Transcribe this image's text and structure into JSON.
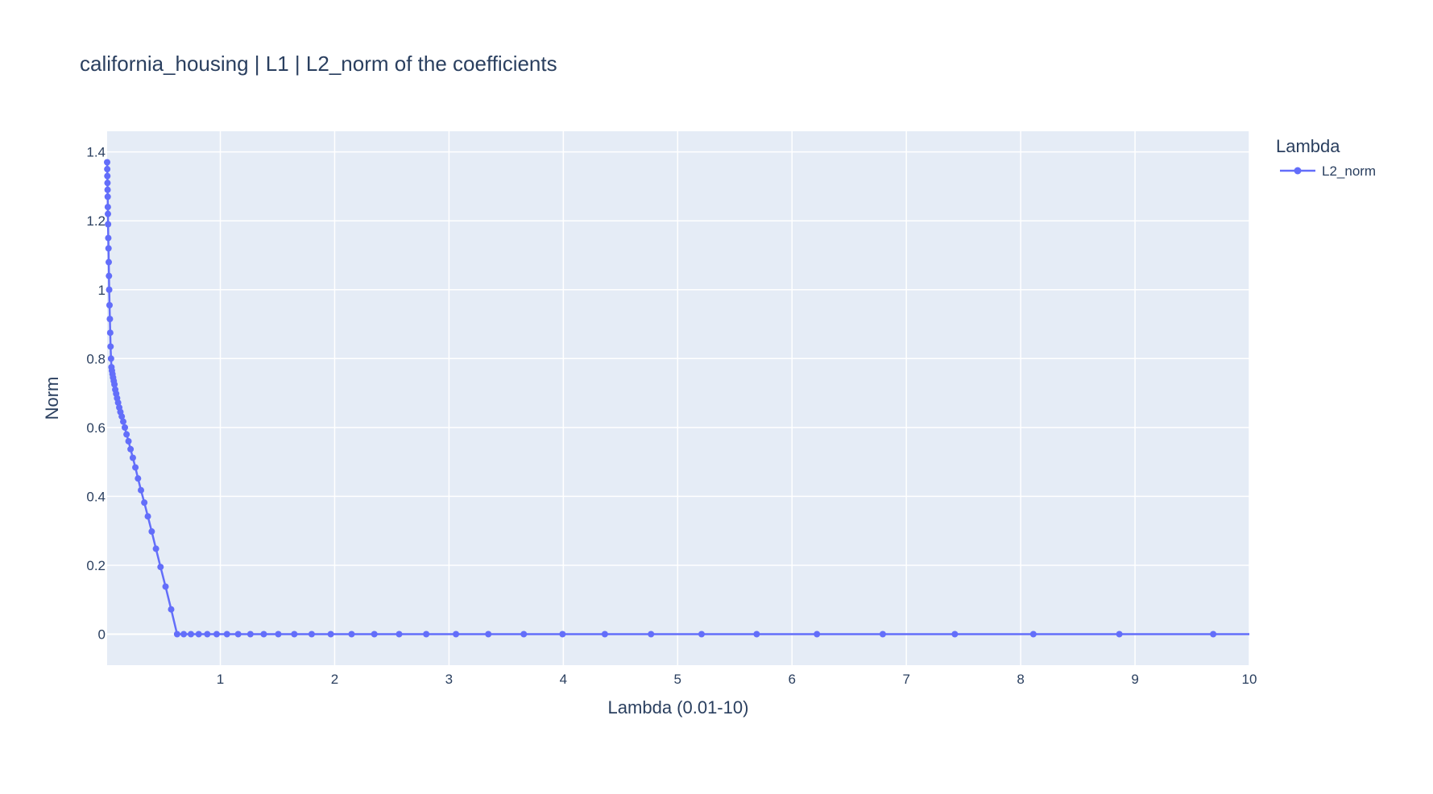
{
  "chart_data": {
    "type": "line",
    "title": "california_housing | L1 | L2_norm of the coefficients",
    "xlabel": "Lambda (0.01-10)",
    "ylabel": "Norm",
    "xlim": [
      0.01,
      10
    ],
    "ylim": [
      -0.09,
      1.46
    ],
    "x_ticks": [
      1,
      2,
      3,
      4,
      5,
      6,
      7,
      8,
      9,
      10
    ],
    "y_ticks": [
      0,
      0.2,
      0.4,
      0.6,
      0.8,
      1,
      1.2,
      1.4
    ],
    "y_tick_labels": [
      "0",
      "0.2",
      "0.4",
      "0.6",
      "0.8",
      "1",
      "1.2",
      "1.4"
    ],
    "x_tick_labels": [
      "1",
      "2",
      "3",
      "4",
      "5",
      "6",
      "7",
      "8",
      "9",
      "10"
    ],
    "grid": true,
    "legend": {
      "title": "Lambda",
      "position": "top-right outside"
    },
    "colors": {
      "series": "#636efa",
      "plot_bg": "#e5ecf6",
      "grid": "#ffffff",
      "text": "#2a3f5f"
    },
    "series": [
      {
        "name": "L2_norm",
        "x": [
          0.01,
          0.011,
          0.012,
          0.013,
          0.014,
          0.015,
          0.016,
          0.017,
          0.018,
          0.02,
          0.022,
          0.024,
          0.026,
          0.028,
          0.031,
          0.034,
          0.037,
          0.04,
          0.044,
          0.048,
          0.052,
          0.057,
          0.062,
          0.068,
          0.074,
          0.081,
          0.089,
          0.097,
          0.106,
          0.116,
          0.126,
          0.138,
          0.151,
          0.165,
          0.18,
          0.197,
          0.215,
          0.235,
          0.257,
          0.28,
          0.306,
          0.335,
          0.366,
          0.4,
          0.437,
          0.477,
          0.521,
          0.57,
          0.622,
          0.68,
          0.743,
          0.811,
          0.886,
          0.968,
          1.058,
          1.156,
          1.263,
          1.38,
          1.507,
          1.647,
          1.799,
          1.966,
          2.148,
          2.347,
          2.564,
          2.801,
          3.061,
          3.344,
          3.654,
          3.993,
          4.363,
          4.767,
          5.209,
          5.691,
          6.218,
          6.794,
          7.424,
          8.111,
          8.863,
          9.684
        ],
        "values": [
          1.37,
          1.35,
          1.33,
          1.31,
          1.29,
          1.27,
          1.24,
          1.22,
          1.19,
          1.15,
          1.12,
          1.08,
          1.04,
          1.0,
          0.955,
          0.915,
          0.875,
          0.835,
          0.8,
          0.775,
          0.765,
          0.755,
          0.745,
          0.735,
          0.725,
          0.71,
          0.698,
          0.685,
          0.672,
          0.658,
          0.645,
          0.632,
          0.617,
          0.6,
          0.58,
          0.56,
          0.537,
          0.512,
          0.484,
          0.452,
          0.418,
          0.382,
          0.342,
          0.298,
          0.248,
          0.195,
          0.138,
          0.072,
          0.0,
          0.0,
          0.0,
          0.0,
          0.0,
          0.0,
          0.0,
          0.0,
          0.0,
          0.0,
          0.0,
          0.0,
          0.0,
          0.0,
          0.0,
          0.0,
          0.0,
          0.0,
          0.0,
          0.0,
          0.0,
          0.0,
          0.0,
          0.0,
          0.0,
          0.0,
          0.0,
          0.0,
          0.0,
          0.0,
          0.0,
          0.0
        ]
      }
    ]
  }
}
